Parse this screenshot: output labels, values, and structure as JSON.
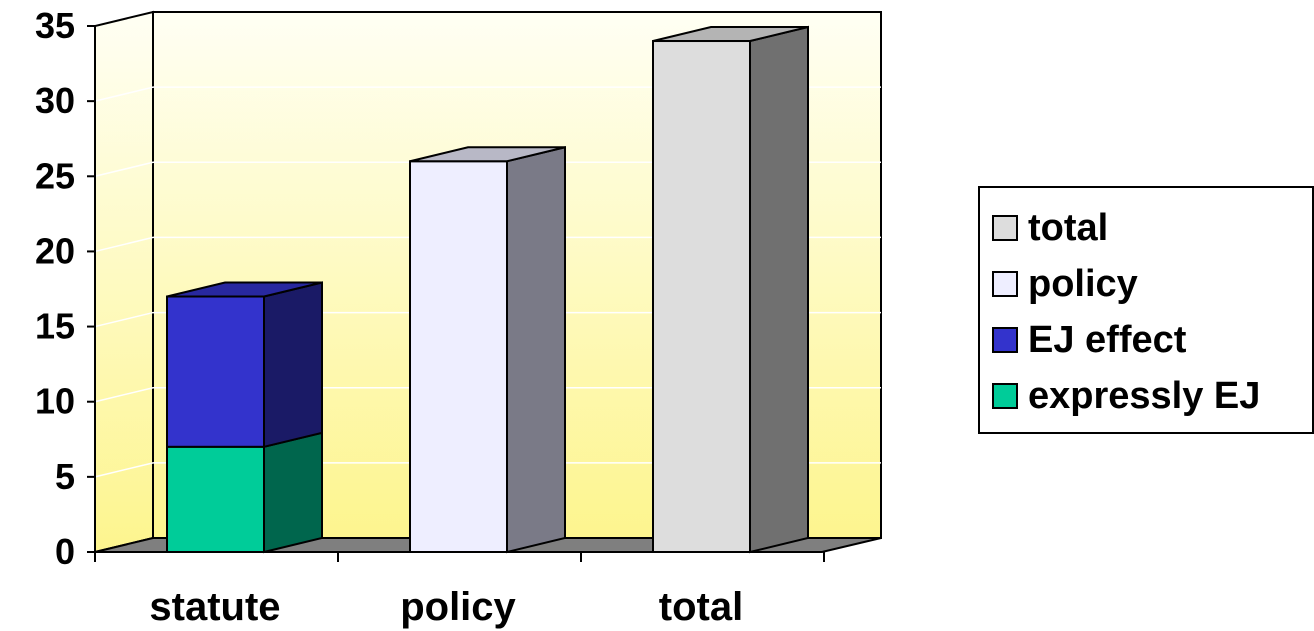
{
  "chart_data": {
    "type": "bar",
    "subtype": "3d-stacked-column",
    "categories": [
      "statute",
      "policy",
      "total"
    ],
    "series": [
      {
        "name": "expressly EJ",
        "color": "#00cc99",
        "values": [
          7,
          0,
          0
        ]
      },
      {
        "name": "EJ effect",
        "color": "#3333cc",
        "values": [
          10,
          0,
          0
        ]
      },
      {
        "name": "policy",
        "color": "#eeeeff",
        "values": [
          0,
          26,
          0
        ]
      },
      {
        "name": "total",
        "color": "#dddddd",
        "values": [
          0,
          0,
          34
        ]
      }
    ],
    "ylim": [
      0,
      35
    ],
    "yticks": [
      "0",
      "5",
      "10",
      "15",
      "20",
      "25",
      "30",
      "35"
    ],
    "grid": true,
    "legend": {
      "position": "right",
      "order": [
        "total",
        "policy",
        "EJ effect",
        "expressly EJ"
      ]
    },
    "colors": {
      "wall_top": "#fffff4",
      "wall_bottom": "#fdf58e",
      "floor": "#7f7f7f",
      "gridline": "#ffffff"
    },
    "title": "",
    "xlabel": "",
    "ylabel": ""
  }
}
